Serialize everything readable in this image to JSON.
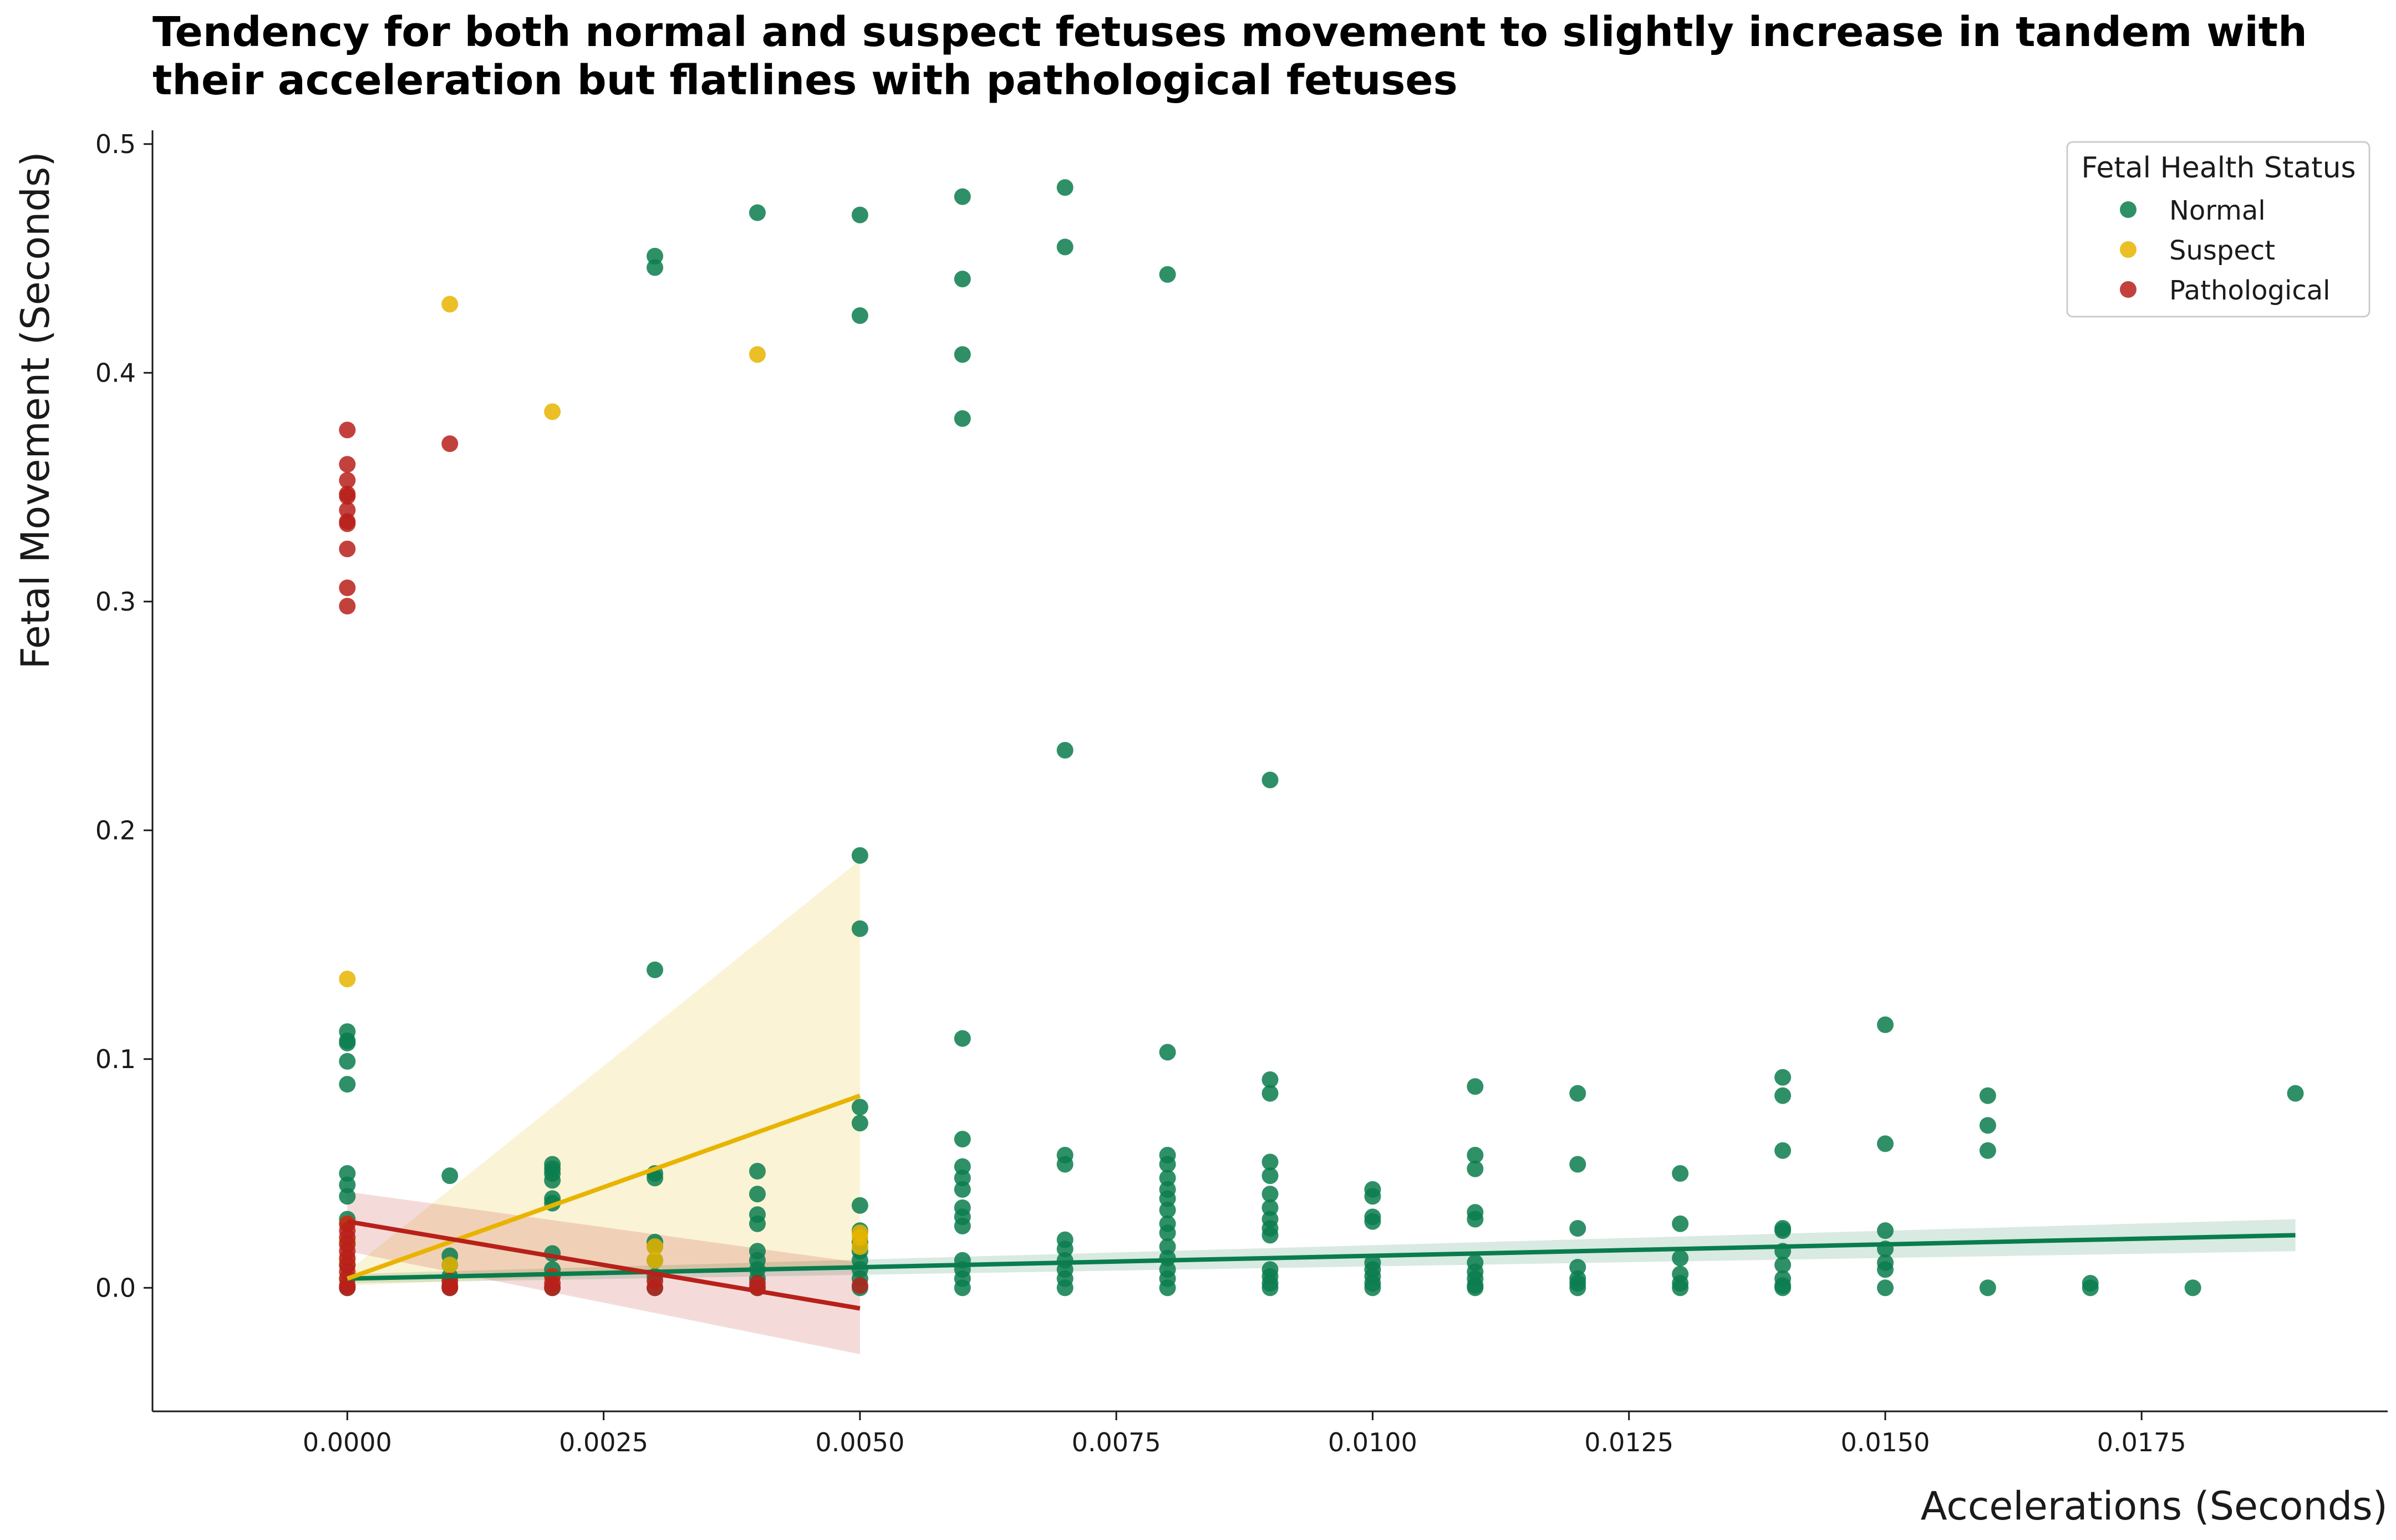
{
  "chart_data": {
    "type": "scatter",
    "title_lines": [
      "Tendency for both normal and suspect fetuses movement to slightly increase in tandem with",
      "their acceleration but flatlines with pathological fetuses"
    ],
    "xlabel": "Accelerations (Seconds)",
    "ylabel": "Fetal Movement (Seconds)",
    "xlim": [
      -0.0019,
      0.0199
    ],
    "ylim": [
      -0.054,
      0.506
    ],
    "xticks": [
      0.0,
      0.0025,
      0.005,
      0.0075,
      0.01,
      0.0125,
      0.015,
      0.0175
    ],
    "xtick_labels": [
      "0.0000",
      "0.0025",
      "0.0050",
      "0.0075",
      "0.0100",
      "0.0125",
      "0.0150",
      "0.0175"
    ],
    "yticks": [
      0.0,
      0.1,
      0.2,
      0.3,
      0.4,
      0.5
    ],
    "ytick_labels": [
      "0.0",
      "0.1",
      "0.2",
      "0.3",
      "0.4",
      "0.5"
    ],
    "grid": false,
    "legend": {
      "title": "Fetal Health Status",
      "position": "top-right"
    },
    "series": [
      {
        "name": "Normal",
        "color": "#0a7c4d",
        "points": [
          [
            0.0,
            0.112
          ],
          [
            0.0,
            0.108
          ],
          [
            0.0,
            0.107
          ],
          [
            0.0,
            0.099
          ],
          [
            0.0,
            0.089
          ],
          [
            0.0,
            0.05
          ],
          [
            0.0,
            0.045
          ],
          [
            0.0,
            0.04
          ],
          [
            0.0,
            0.03
          ],
          [
            0.0,
            0.02
          ],
          [
            0.0,
            0.01
          ],
          [
            0.0,
            0.004
          ],
          [
            0.0,
            0.0
          ],
          [
            0.001,
            0.049
          ],
          [
            0.001,
            0.014
          ],
          [
            0.001,
            0.01
          ],
          [
            0.001,
            0.005
          ],
          [
            0.001,
            0.0
          ],
          [
            0.002,
            0.054
          ],
          [
            0.002,
            0.052
          ],
          [
            0.002,
            0.05
          ],
          [
            0.002,
            0.047
          ],
          [
            0.002,
            0.039
          ],
          [
            0.002,
            0.037
          ],
          [
            0.002,
            0.015
          ],
          [
            0.002,
            0.008
          ],
          [
            0.002,
            0.0
          ],
          [
            0.003,
            0.451
          ],
          [
            0.003,
            0.446
          ],
          [
            0.003,
            0.139
          ],
          [
            0.003,
            0.05
          ],
          [
            0.003,
            0.048
          ],
          [
            0.003,
            0.02
          ],
          [
            0.003,
            0.018
          ],
          [
            0.003,
            0.012
          ],
          [
            0.003,
            0.005
          ],
          [
            0.003,
            0.0
          ],
          [
            0.004,
            0.47
          ],
          [
            0.004,
            0.051
          ],
          [
            0.004,
            0.041
          ],
          [
            0.004,
            0.032
          ],
          [
            0.004,
            0.028
          ],
          [
            0.004,
            0.016
          ],
          [
            0.004,
            0.012
          ],
          [
            0.004,
            0.008
          ],
          [
            0.004,
            0.004
          ],
          [
            0.004,
            0.0
          ],
          [
            0.005,
            0.469
          ],
          [
            0.005,
            0.425
          ],
          [
            0.005,
            0.189
          ],
          [
            0.005,
            0.157
          ],
          [
            0.005,
            0.079
          ],
          [
            0.005,
            0.072
          ],
          [
            0.005,
            0.036
          ],
          [
            0.005,
            0.025
          ],
          [
            0.005,
            0.02
          ],
          [
            0.005,
            0.016
          ],
          [
            0.005,
            0.012
          ],
          [
            0.005,
            0.008
          ],
          [
            0.005,
            0.004
          ],
          [
            0.005,
            0.0
          ],
          [
            0.006,
            0.477
          ],
          [
            0.006,
            0.441
          ],
          [
            0.006,
            0.408
          ],
          [
            0.006,
            0.38
          ],
          [
            0.006,
            0.109
          ],
          [
            0.006,
            0.065
          ],
          [
            0.006,
            0.053
          ],
          [
            0.006,
            0.048
          ],
          [
            0.006,
            0.043
          ],
          [
            0.006,
            0.035
          ],
          [
            0.006,
            0.031
          ],
          [
            0.006,
            0.027
          ],
          [
            0.006,
            0.012
          ],
          [
            0.006,
            0.008
          ],
          [
            0.006,
            0.004
          ],
          [
            0.006,
            0.0
          ],
          [
            0.007,
            0.481
          ],
          [
            0.007,
            0.455
          ],
          [
            0.007,
            0.235
          ],
          [
            0.007,
            0.058
          ],
          [
            0.007,
            0.054
          ],
          [
            0.007,
            0.021
          ],
          [
            0.007,
            0.017
          ],
          [
            0.007,
            0.012
          ],
          [
            0.007,
            0.008
          ],
          [
            0.007,
            0.004
          ],
          [
            0.007,
            0.0
          ],
          [
            0.008,
            0.443
          ],
          [
            0.008,
            0.103
          ],
          [
            0.008,
            0.058
          ],
          [
            0.008,
            0.054
          ],
          [
            0.008,
            0.048
          ],
          [
            0.008,
            0.043
          ],
          [
            0.008,
            0.039
          ],
          [
            0.008,
            0.034
          ],
          [
            0.008,
            0.028
          ],
          [
            0.008,
            0.024
          ],
          [
            0.008,
            0.018
          ],
          [
            0.008,
            0.013
          ],
          [
            0.008,
            0.008
          ],
          [
            0.008,
            0.004
          ],
          [
            0.008,
            0.0
          ],
          [
            0.009,
            0.222
          ],
          [
            0.009,
            0.091
          ],
          [
            0.009,
            0.085
          ],
          [
            0.009,
            0.055
          ],
          [
            0.009,
            0.049
          ],
          [
            0.009,
            0.041
          ],
          [
            0.009,
            0.035
          ],
          [
            0.009,
            0.03
          ],
          [
            0.009,
            0.026
          ],
          [
            0.009,
            0.023
          ],
          [
            0.009,
            0.008
          ],
          [
            0.009,
            0.005
          ],
          [
            0.009,
            0.002
          ],
          [
            0.009,
            0.0
          ],
          [
            0.01,
            0.043
          ],
          [
            0.01,
            0.04
          ],
          [
            0.01,
            0.031
          ],
          [
            0.01,
            0.029
          ],
          [
            0.01,
            0.011
          ],
          [
            0.01,
            0.008
          ],
          [
            0.01,
            0.005
          ],
          [
            0.01,
            0.002
          ],
          [
            0.01,
            0.0
          ],
          [
            0.011,
            0.088
          ],
          [
            0.011,
            0.058
          ],
          [
            0.011,
            0.052
          ],
          [
            0.011,
            0.033
          ],
          [
            0.011,
            0.03
          ],
          [
            0.011,
            0.011
          ],
          [
            0.011,
            0.007
          ],
          [
            0.011,
            0.004
          ],
          [
            0.011,
            0.001
          ],
          [
            0.011,
            0.0
          ],
          [
            0.012,
            0.085
          ],
          [
            0.012,
            0.054
          ],
          [
            0.012,
            0.026
          ],
          [
            0.012,
            0.009
          ],
          [
            0.012,
            0.004
          ],
          [
            0.012,
            0.002
          ],
          [
            0.012,
            0.0
          ],
          [
            0.013,
            0.05
          ],
          [
            0.013,
            0.028
          ],
          [
            0.013,
            0.013
          ],
          [
            0.013,
            0.006
          ],
          [
            0.013,
            0.002
          ],
          [
            0.013,
            0.0
          ],
          [
            0.014,
            0.092
          ],
          [
            0.014,
            0.084
          ],
          [
            0.014,
            0.06
          ],
          [
            0.014,
            0.026
          ],
          [
            0.014,
            0.025
          ],
          [
            0.014,
            0.016
          ],
          [
            0.014,
            0.01
          ],
          [
            0.014,
            0.004
          ],
          [
            0.014,
            0.001
          ],
          [
            0.014,
            0.0
          ],
          [
            0.015,
            0.115
          ],
          [
            0.015,
            0.063
          ],
          [
            0.015,
            0.025
          ],
          [
            0.015,
            0.017
          ],
          [
            0.015,
            0.011
          ],
          [
            0.015,
            0.008
          ],
          [
            0.015,
            0.0
          ],
          [
            0.016,
            0.084
          ],
          [
            0.016,
            0.071
          ],
          [
            0.016,
            0.06
          ],
          [
            0.016,
            0.0
          ],
          [
            0.017,
            0.002
          ],
          [
            0.017,
            0.0
          ],
          [
            0.018,
            0.0
          ],
          [
            0.019,
            0.085
          ]
        ],
        "fit": {
          "x": [
            0.0,
            0.019
          ],
          "y": [
            0.004,
            0.023
          ],
          "band_upper": [
            0.006,
            0.03
          ],
          "band_lower": [
            0.002,
            0.016
          ]
        }
      },
      {
        "name": "Suspect",
        "color": "#e8b400",
        "points": [
          [
            0.0,
            0.135
          ],
          [
            0.0,
            0.028
          ],
          [
            0.0,
            0.02
          ],
          [
            0.0,
            0.012
          ],
          [
            0.0,
            0.004
          ],
          [
            0.001,
            0.43
          ],
          [
            0.001,
            0.01
          ],
          [
            0.002,
            0.383
          ],
          [
            0.002,
            0.005
          ],
          [
            0.003,
            0.018
          ],
          [
            0.003,
            0.012
          ],
          [
            0.004,
            0.408
          ],
          [
            0.005,
            0.024
          ],
          [
            0.005,
            0.022
          ],
          [
            0.005,
            0.018
          ]
        ],
        "fit": {
          "x": [
            0.0,
            0.005
          ],
          "y": [
            0.004,
            0.084
          ],
          "band_upper": [
            0.007,
            0.187
          ],
          "band_lower": [
            0.001,
            0.01
          ]
        }
      },
      {
        "name": "Pathological",
        "color": "#b8201a",
        "points": [
          [
            0.0,
            0.375
          ],
          [
            0.0,
            0.36
          ],
          [
            0.0,
            0.353
          ],
          [
            0.0,
            0.347
          ],
          [
            0.0,
            0.346
          ],
          [
            0.0,
            0.34
          ],
          [
            0.0,
            0.335
          ],
          [
            0.0,
            0.334
          ],
          [
            0.0,
            0.323
          ],
          [
            0.0,
            0.306
          ],
          [
            0.0,
            0.298
          ],
          [
            0.0,
            0.028
          ],
          [
            0.0,
            0.025
          ],
          [
            0.0,
            0.022
          ],
          [
            0.0,
            0.019
          ],
          [
            0.0,
            0.016
          ],
          [
            0.0,
            0.013
          ],
          [
            0.0,
            0.01
          ],
          [
            0.0,
            0.007
          ],
          [
            0.0,
            0.004
          ],
          [
            0.0,
            0.001
          ],
          [
            0.0,
            0.0
          ],
          [
            0.001,
            0.369
          ],
          [
            0.001,
            0.003
          ],
          [
            0.001,
            0.001
          ],
          [
            0.001,
            0.0
          ],
          [
            0.002,
            0.005
          ],
          [
            0.002,
            0.002
          ],
          [
            0.002,
            0.0
          ],
          [
            0.003,
            0.003
          ],
          [
            0.003,
            0.0
          ],
          [
            0.004,
            0.002
          ],
          [
            0.004,
            0.0
          ],
          [
            0.005,
            0.001
          ]
        ],
        "fit": {
          "x": [
            0.0,
            0.005
          ],
          "y": [
            0.029,
            -0.009
          ],
          "band_upper": [
            0.042,
            0.011
          ],
          "band_lower": [
            0.016,
            -0.029
          ]
        }
      }
    ]
  }
}
